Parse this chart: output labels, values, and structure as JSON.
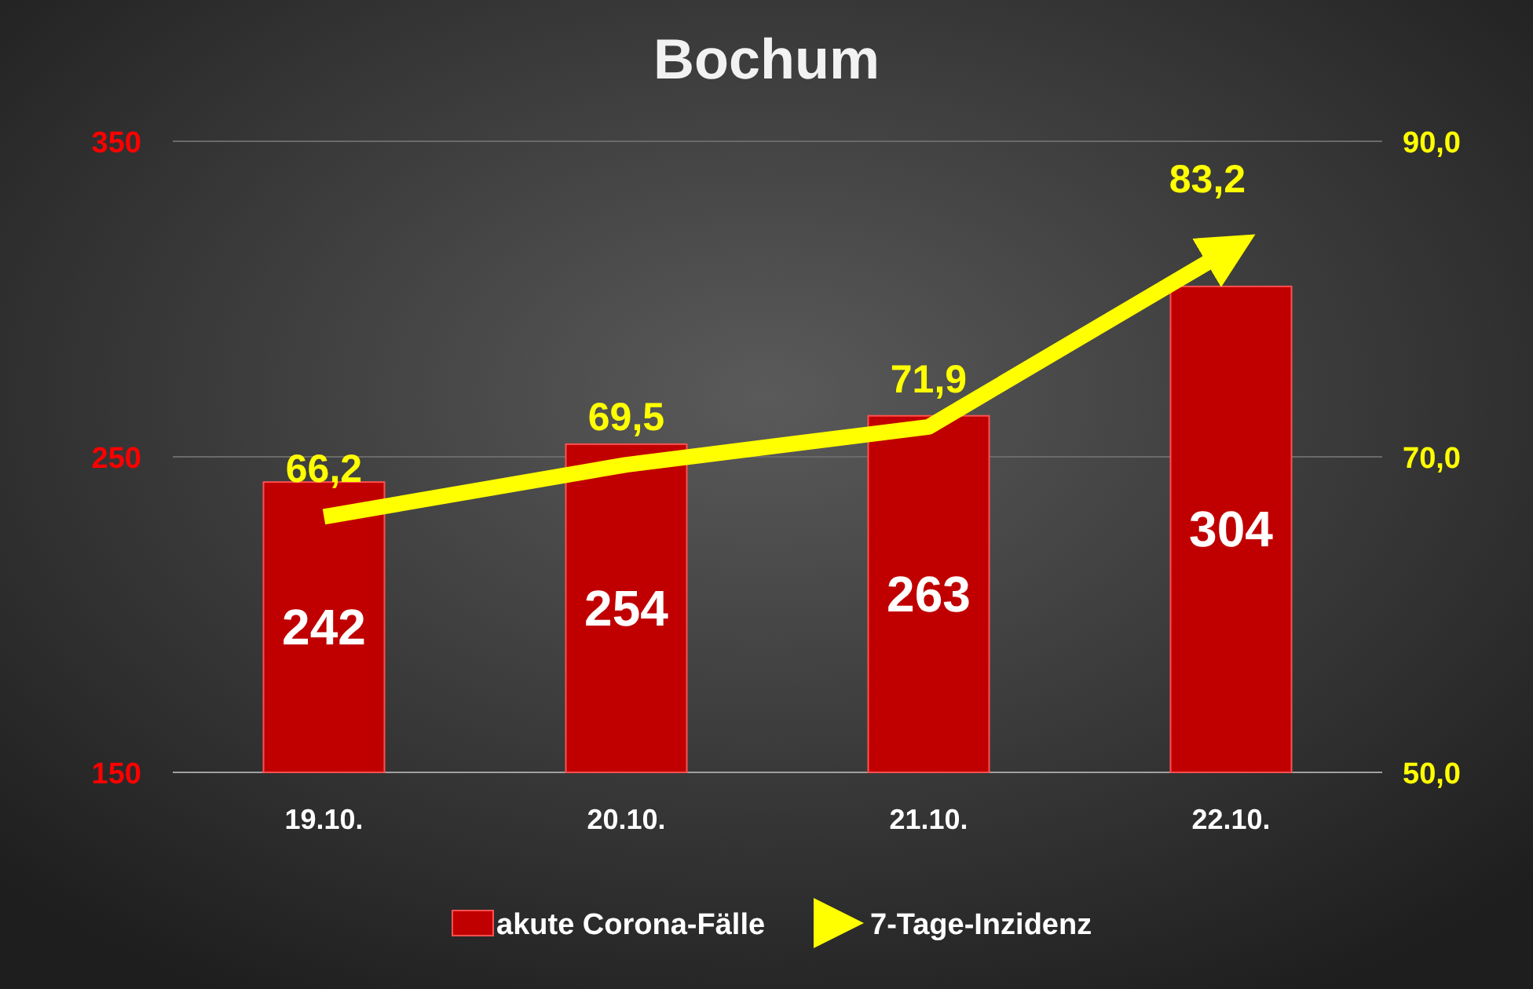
{
  "chart_data": {
    "type": "bar",
    "title": "Bochum",
    "categories": [
      "19.10.",
      "20.10.",
      "21.10.",
      "22.10."
    ],
    "series": [
      {
        "name": "akute Corona-Fälle",
        "color": "#c00000",
        "values": [
          242,
          254,
          263,
          304
        ],
        "value_labels": [
          "242",
          "254",
          "263",
          "304"
        ]
      },
      {
        "name": "7-Tage-Inzidenz",
        "type": "line",
        "axis": "y2",
        "color": "#ffff00",
        "values": [
          66.2,
          69.5,
          71.9,
          83.2
        ],
        "value_labels": [
          "66,2",
          "69,5",
          "71,9",
          "83,2"
        ]
      }
    ],
    "ylim": [
      150,
      350
    ],
    "yticks": [
      150,
      250,
      350
    ],
    "y2lim": [
      50,
      90
    ],
    "y2ticks": [
      {
        "value": 50,
        "label": "50,0"
      },
      {
        "value": 70,
        "label": "70,0"
      },
      {
        "value": 90,
        "label": "90,0"
      }
    ],
    "grid": "y",
    "legend": "bottom",
    "marker": "none",
    "line_style": "solid"
  }
}
